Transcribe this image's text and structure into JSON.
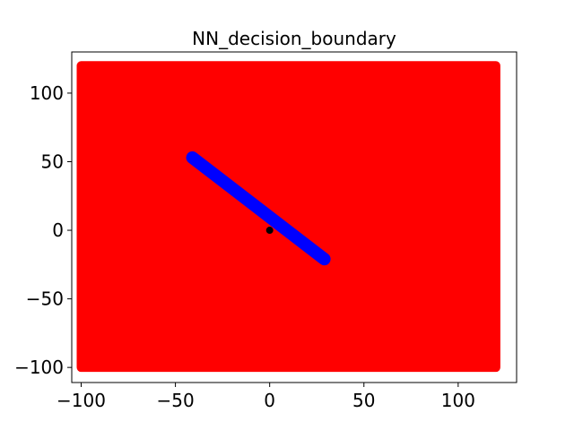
{
  "chart_data": {
    "type": "scatter",
    "title": "NN_decision_boundary",
    "xlabel": "",
    "ylabel": "",
    "xlim": [
      -105,
      131
    ],
    "ylim": [
      -111,
      130
    ],
    "xticks": [
      -100,
      -50,
      0,
      50,
      100
    ],
    "yticks": [
      -100,
      -50,
      0,
      50,
      100
    ],
    "xtick_labels": [
      "−100",
      "−50",
      "0",
      "50",
      "100"
    ],
    "ytick_labels": [
      "−100",
      "−50",
      "0",
      "50",
      "100"
    ],
    "grid": false,
    "legend": "none",
    "series": [
      {
        "kind": "region",
        "color": "#ff0000",
        "x_range": [
          -100,
          120
        ],
        "y_range": [
          -100,
          120
        ],
        "description_values": "uniform grid of points covering the full square"
      },
      {
        "kind": "band",
        "color": "#0000ff",
        "endpoints": [
          [
            -41,
            53
          ],
          [
            29,
            -21
          ]
        ],
        "half_width_y": 3.5
      },
      {
        "kind": "point",
        "color": "#000000",
        "points": [
          [
            0,
            0
          ]
        ]
      }
    ]
  }
}
